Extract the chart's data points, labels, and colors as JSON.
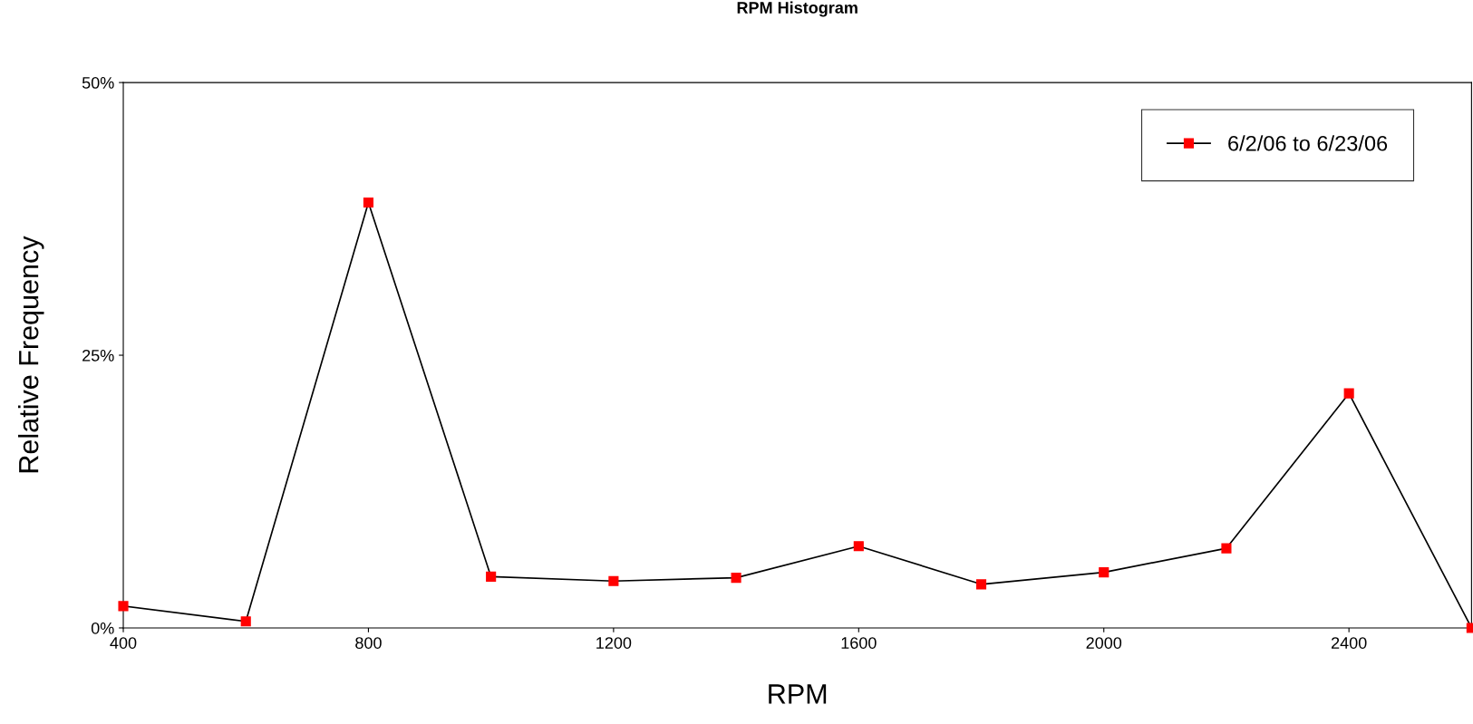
{
  "chart_data": {
    "type": "line",
    "title": "RPM Histogram",
    "xlabel": "RPM",
    "ylabel": "Relative Frequency",
    "x": [
      400,
      600,
      800,
      1000,
      1200,
      1400,
      1600,
      1800,
      2000,
      2200,
      2400,
      2600
    ],
    "series": [
      {
        "name": "6/2/06 to 6/23/06",
        "color": "#ff0000",
        "values": [
          2.0,
          0.6,
          39.0,
          4.7,
          4.3,
          4.6,
          7.5,
          4.0,
          5.1,
          7.3,
          21.5,
          0
        ]
      }
    ],
    "xlim": [
      400,
      2600
    ],
    "xticks": [
      400,
      800,
      1200,
      1600,
      2000,
      2400
    ],
    "ylim": [
      0,
      50
    ],
    "yticks": [
      {
        "value": 0,
        "label": "0%"
      },
      {
        "value": 25,
        "label": "25%"
      },
      {
        "value": 50,
        "label": "50%"
      }
    ],
    "marker": "square",
    "line_style": "solid",
    "grid": false,
    "legend": "top right"
  }
}
